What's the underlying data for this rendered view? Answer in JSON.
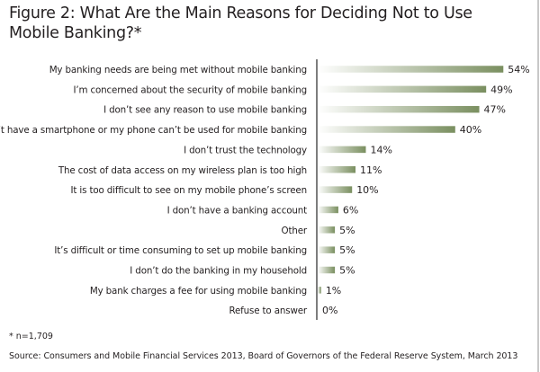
{
  "chart_data": {
    "type": "bar",
    "orientation": "horizontal",
    "title": "Figure 2: What Are the Main Reasons for Deciding Not to Use Mobile Banking?*",
    "categories": [
      "My banking needs are being met without mobile banking",
      "I’m concerned about the security of mobile banking",
      "I don’t see any reason to use mobile banking",
      "I don’t have a smartphone or my phone can’t be used for mobile banking",
      "I don’t trust the technology",
      "The cost of data access on my wireless plan is too high",
      "It is too difficult to see on my mobile phone’s screen",
      "I don’t have a banking account",
      "Other",
      "It’s difficult or time consuming to set up mobile banking",
      "I don’t do the banking in my household",
      "My bank charges a fee for using mobile banking",
      "Refuse to answer"
    ],
    "values": [
      54,
      49,
      47,
      40,
      14,
      11,
      10,
      6,
      5,
      5,
      5,
      1,
      0
    ],
    "value_labels": [
      "54%",
      "49%",
      "47%",
      "40%",
      "14%",
      "11%",
      "10%",
      "6%",
      "5%",
      "5%",
      "5%",
      "1%",
      "0%"
    ],
    "unit": "%",
    "xlim": [
      0,
      60
    ],
    "grid": false,
    "bar_color": "#7a8f60",
    "bar_gradient_start": "#ffffff"
  },
  "note": "* n=1,709",
  "source": "Source: Consumers and Mobile Financial Services 2013, Board of Governors of the Federal Reserve System, March 2013"
}
